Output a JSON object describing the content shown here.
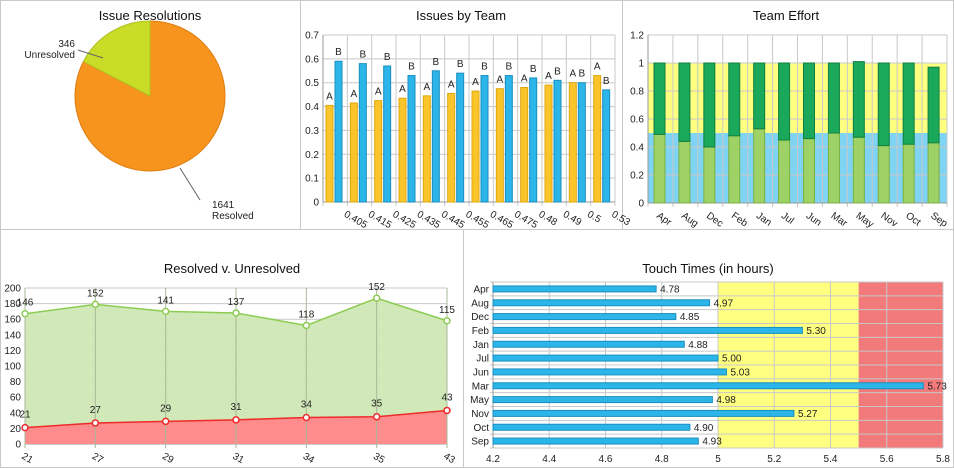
{
  "colors": {
    "panel_border": "#c8c8c8",
    "grid": "#c8c8c8",
    "orange": "#f7941d",
    "yellow_green": "#c8dc28",
    "gold": "#f9c52a",
    "blue": "#2cb5e8",
    "dark_green": "#1aa85a",
    "light_green": "#9ed266",
    "band_yellow": "#ffff80",
    "band_blue": "#7fd3f3",
    "area_green": "#cfe8b4",
    "line_green": "#8ccc52",
    "area_red": "#ff8c8c",
    "line_red": "#ee2a2a",
    "band_red": "#f37a7a"
  },
  "chart_data": [
    {
      "id": "pie",
      "type": "pie",
      "title": "Issue Resolutions",
      "slices": [
        {
          "label": "Unresolved",
          "value": 346
        },
        {
          "label": "Resolved",
          "value": 1641
        }
      ]
    },
    {
      "id": "team",
      "type": "bar",
      "title": "Issues by Team",
      "categories": [
        "0.405",
        "0.415",
        "0.425",
        "0.435",
        "0.445",
        "0.455",
        "0.465",
        "0.475",
        "0.48",
        "0.49",
        "0.5",
        "0.53"
      ],
      "series": [
        {
          "name": "A",
          "values": [
            0.405,
            0.415,
            0.425,
            0.435,
            0.445,
            0.455,
            0.465,
            0.475,
            0.48,
            0.49,
            0.5,
            0.53
          ]
        },
        {
          "name": "B",
          "values": [
            0.59,
            0.58,
            0.57,
            0.53,
            0.55,
            0.54,
            0.53,
            0.53,
            0.52,
            0.51,
            0.5,
            0.47
          ]
        }
      ],
      "ylim": [
        0,
        0.7
      ],
      "yticks": [
        "0",
        "0.1",
        "0.2",
        "0.3",
        "0.4",
        "0.5",
        "0.6",
        "0.7"
      ],
      "grid": true
    },
    {
      "id": "effort",
      "type": "bar",
      "stacked": true,
      "title": "Team Effort",
      "categories": [
        "Apr",
        "Aug",
        "Dec",
        "Feb",
        "Jan",
        "Jul",
        "Jun",
        "Mar",
        "May",
        "Nov",
        "Oct",
        "Sep"
      ],
      "series": [
        {
          "values": [
            0.49,
            0.44,
            0.4,
            0.48,
            0.53,
            0.45,
            0.46,
            0.5,
            0.47,
            0.41,
            0.42,
            0.43
          ]
        },
        {
          "values": [
            0.51,
            0.56,
            0.6,
            0.52,
            0.47,
            0.55,
            0.54,
            0.5,
            0.54,
            0.59,
            0.58,
            0.54
          ]
        }
      ],
      "bands": [
        {
          "from": 0,
          "to": 0.5,
          "color": "#7fd3f3"
        },
        {
          "from": 0.5,
          "to": 1,
          "color": "#ffff80"
        }
      ],
      "ylim": [
        0,
        1.2
      ],
      "yticks": [
        "0",
        "0.2",
        "0.4",
        "0.6",
        "0.8",
        "1",
        "1.2"
      ],
      "grid": true
    },
    {
      "id": "resolved",
      "type": "area",
      "stacked": true,
      "title": "Resolved v. Unresolved",
      "categories": [
        "21",
        "27",
        "29",
        "31",
        "34",
        "35",
        "43"
      ],
      "series": [
        {
          "values": [
            21,
            27,
            29,
            31,
            34,
            35,
            43
          ]
        },
        {
          "values": [
            146,
            152,
            141,
            137,
            118,
            152,
            115
          ]
        }
      ],
      "ylim": [
        0,
        200
      ],
      "yticks": [
        "0",
        "20",
        "40",
        "60",
        "80",
        "100",
        "120",
        "140",
        "160",
        "180",
        "200"
      ],
      "grid": true
    },
    {
      "id": "touch",
      "type": "bar",
      "orientation": "horizontal",
      "title": "Touch Times (in hours)",
      "categories": [
        "Apr",
        "Aug",
        "Dec",
        "Feb",
        "Jan",
        "Jul",
        "Jun",
        "Mar",
        "May",
        "Nov",
        "Oct",
        "Sep"
      ],
      "values": [
        4.78,
        4.97,
        4.85,
        5.3,
        4.88,
        5.0,
        5.03,
        5.73,
        4.98,
        5.27,
        4.9,
        4.93
      ],
      "labels": [
        "4.78",
        "4.97",
        "4.85",
        "5.30",
        "4.88",
        "5.00",
        "5.03",
        "5.73",
        "4.98",
        "5.27",
        "4.90",
        "4.93"
      ],
      "bands": [
        {
          "from": 5,
          "to": 5.5,
          "color": "#ffff80"
        },
        {
          "from": 5.5,
          "to": 5.8,
          "color": "#f37a7a"
        }
      ],
      "xlim": [
        4.2,
        5.8
      ],
      "xticks": [
        "4.2",
        "4.4",
        "4.6",
        "4.8",
        "5",
        "5.2",
        "5.4",
        "5.6",
        "5.8"
      ],
      "grid": true
    }
  ]
}
